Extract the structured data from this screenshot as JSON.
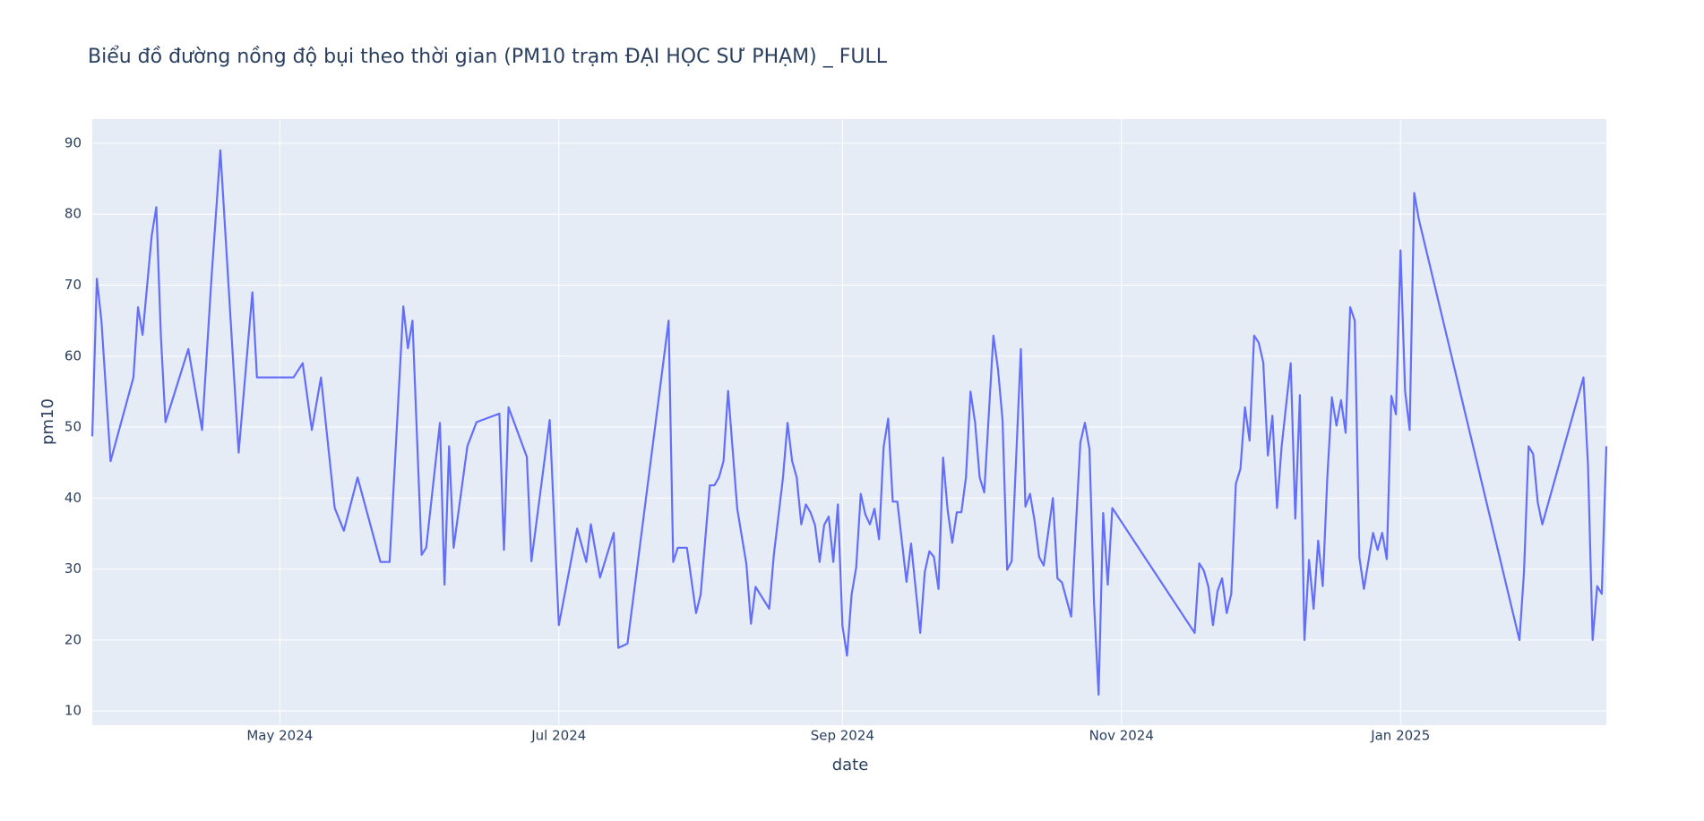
{
  "chart_data": {
    "type": "line",
    "title": "Biểu đồ đường nồng độ bụi theo thời gian (PM10 trạm ĐẠI HỌC SƯ PHẠM) _ FULL",
    "x_label": "date",
    "y_label": "pm10",
    "grid": true,
    "background": "#e5ecf6",
    "xlim": [
      "2024-03-21",
      "2025-02-15"
    ],
    "xticks": [
      {
        "value": "2024-05-01",
        "label": "May 2024"
      },
      {
        "value": "2024-07-01",
        "label": "Jul 2024"
      },
      {
        "value": "2024-09-01",
        "label": "Sep 2024"
      },
      {
        "value": "2024-11-01",
        "label": "Nov 2024"
      },
      {
        "value": "2025-01-01",
        "label": "Jan 2025"
      }
    ],
    "ylim": [
      8,
      93.4
    ],
    "yticks": [
      10,
      20,
      30,
      40,
      50,
      60,
      70,
      80,
      90
    ],
    "x": [
      "2024-03-21",
      "2024-03-22",
      "2024-03-23",
      "2024-03-25",
      "2024-03-30",
      "2024-03-31",
      "2024-04-01",
      "2024-04-03",
      "2024-04-04",
      "2024-04-05",
      "2024-04-06",
      "2024-04-11",
      "2024-04-14",
      "2024-04-16",
      "2024-04-18",
      "2024-04-22",
      "2024-04-25",
      "2024-04-26",
      "2024-05-04",
      "2024-05-06",
      "2024-05-08",
      "2024-05-10",
      "2024-05-13",
      "2024-05-15",
      "2024-05-18",
      "2024-05-23",
      "2024-05-25",
      "2024-05-28",
      "2024-05-29",
      "2024-05-30",
      "2024-06-01",
      "2024-06-02",
      "2024-06-05",
      "2024-06-06",
      "2024-06-07",
      "2024-06-08",
      "2024-06-11",
      "2024-06-13",
      "2024-06-18",
      "2024-06-19",
      "2024-06-20",
      "2024-06-24",
      "2024-06-25",
      "2024-06-29",
      "2024-07-01",
      "2024-07-05",
      "2024-07-07",
      "2024-07-08",
      "2024-07-10",
      "2024-07-13",
      "2024-07-14",
      "2024-07-16",
      "2024-07-25",
      "2024-07-26",
      "2024-07-27",
      "2024-07-29",
      "2024-07-31",
      "2024-08-01",
      "2024-08-03",
      "2024-08-04",
      "2024-08-05",
      "2024-08-06",
      "2024-08-07",
      "2024-08-09",
      "2024-08-11",
      "2024-08-12",
      "2024-08-13",
      "2024-08-16",
      "2024-08-17",
      "2024-08-19",
      "2024-08-20",
      "2024-08-21",
      "2024-08-22",
      "2024-08-23",
      "2024-08-24",
      "2024-08-25",
      "2024-08-26",
      "2024-08-27",
      "2024-08-28",
      "2024-08-29",
      "2024-08-30",
      "2024-08-31",
      "2024-09-01",
      "2024-09-02",
      "2024-09-03",
      "2024-09-04",
      "2024-09-05",
      "2024-09-06",
      "2024-09-07",
      "2024-09-08",
      "2024-09-09",
      "2024-09-10",
      "2024-09-11",
      "2024-09-12",
      "2024-09-13",
      "2024-09-15",
      "2024-09-16",
      "2024-09-18",
      "2024-09-19",
      "2024-09-20",
      "2024-09-21",
      "2024-09-22",
      "2024-09-23",
      "2024-09-24",
      "2024-09-25",
      "2024-09-26",
      "2024-09-27",
      "2024-09-28",
      "2024-09-29",
      "2024-09-30",
      "2024-10-01",
      "2024-10-02",
      "2024-10-04",
      "2024-10-05",
      "2024-10-06",
      "2024-10-07",
      "2024-10-08",
      "2024-10-10",
      "2024-10-11",
      "2024-10-12",
      "2024-10-13",
      "2024-10-14",
      "2024-10-15",
      "2024-10-17",
      "2024-10-18",
      "2024-10-19",
      "2024-10-21",
      "2024-10-23",
      "2024-10-24",
      "2024-10-25",
      "2024-10-26",
      "2024-10-27",
      "2024-10-28",
      "2024-10-29",
      "2024-10-30",
      "2024-11-17",
      "2024-11-18",
      "2024-11-19",
      "2024-11-20",
      "2024-11-21",
      "2024-11-22",
      "2024-11-23",
      "2024-11-24",
      "2024-11-25",
      "2024-11-26",
      "2024-11-27",
      "2024-11-28",
      "2024-11-29",
      "2024-11-30",
      "2024-12-01",
      "2024-12-02",
      "2024-12-03",
      "2024-12-04",
      "2024-12-05",
      "2024-12-06",
      "2024-12-08",
      "2024-12-09",
      "2024-12-10",
      "2024-12-11",
      "2024-12-12",
      "2024-12-13",
      "2024-12-14",
      "2024-12-15",
      "2024-12-16",
      "2024-12-17",
      "2024-12-18",
      "2024-12-19",
      "2024-12-20",
      "2024-12-21",
      "2024-12-22",
      "2024-12-23",
      "2024-12-24",
      "2024-12-26",
      "2024-12-27",
      "2024-12-28",
      "2024-12-29",
      "2024-12-30",
      "2024-12-31",
      "2025-01-01",
      "2025-01-02",
      "2025-01-03",
      "2025-01-04",
      "2025-01-05",
      "2025-01-27",
      "2025-01-28",
      "2025-01-29",
      "2025-01-30",
      "2025-01-31",
      "2025-02-01",
      "2025-02-10",
      "2025-02-11",
      "2025-02-12",
      "2025-02-13",
      "2025-02-14",
      "2025-02-15"
    ],
    "series": [
      {
        "name": "pm10",
        "color": "#636efa",
        "values": [
          48.7,
          70.9,
          65,
          45.2,
          57,
          66.9,
          63,
          77,
          81,
          62.8,
          50.7,
          61,
          49.6,
          70.4,
          89,
          46.4,
          69,
          57,
          57,
          59,
          49.6,
          57,
          38.6,
          35.4,
          42.9,
          31,
          31,
          67,
          61.1,
          65,
          32,
          33,
          50.6,
          27.8,
          47.3,
          33,
          47.3,
          50.7,
          51.9,
          32.7,
          52.8,
          45.8,
          31.1,
          51,
          22.1,
          35.7,
          31,
          36.3,
          28.8,
          35.1,
          18.9,
          19.5,
          65,
          31,
          33,
          33,
          23.8,
          26.4,
          41.8,
          41.8,
          42.9,
          45.2,
          55.1,
          38.5,
          30.7,
          22.3,
          27.5,
          24.4,
          32,
          42.9,
          50.6,
          45.2,
          42.9,
          36.3,
          39.1,
          38,
          36.2,
          31,
          36.2,
          37.4,
          31,
          39.1,
          22,
          17.8,
          26.4,
          30.2,
          40.6,
          37.7,
          36.3,
          38.5,
          34.2,
          47.2,
          51.2,
          39.5,
          39.5,
          28.2,
          33.6,
          21,
          29.6,
          32.5,
          31.7,
          27.2,
          45.7,
          38.3,
          33.7,
          38,
          38,
          42.9,
          55,
          50.6,
          42.9,
          40.8,
          62.9,
          58.2,
          51,
          29.9,
          31.1,
          61,
          38.8,
          40.6,
          36.8,
          31.7,
          30.5,
          40,
          28.7,
          28.1,
          23.3,
          47.8,
          50.6,
          46.9,
          25.2,
          12.3,
          37.9,
          27.8,
          38.6,
          21,
          30.8,
          29.8,
          27.5,
          22.1,
          26.9,
          28.7,
          23.8,
          26.5,
          42,
          44.1,
          52.8,
          48.1,
          62.9,
          61.9,
          59.1,
          46,
          51.6,
          38.6,
          47.2,
          59,
          37.1,
          54.5,
          20,
          31.3,
          24.4,
          34,
          27.6,
          42.9,
          54.2,
          50.2,
          53.8,
          49.2,
          66.9,
          65,
          31.7,
          27.2,
          35.1,
          32.7,
          35.1,
          31.4,
          54.4,
          51.8,
          74.9,
          55.1,
          49.6,
          83,
          79.3,
          20,
          29.6,
          47.3,
          46.2,
          39.4,
          36.3,
          57,
          44.4,
          20,
          27.6,
          26.5,
          47.3
        ]
      }
    ]
  }
}
